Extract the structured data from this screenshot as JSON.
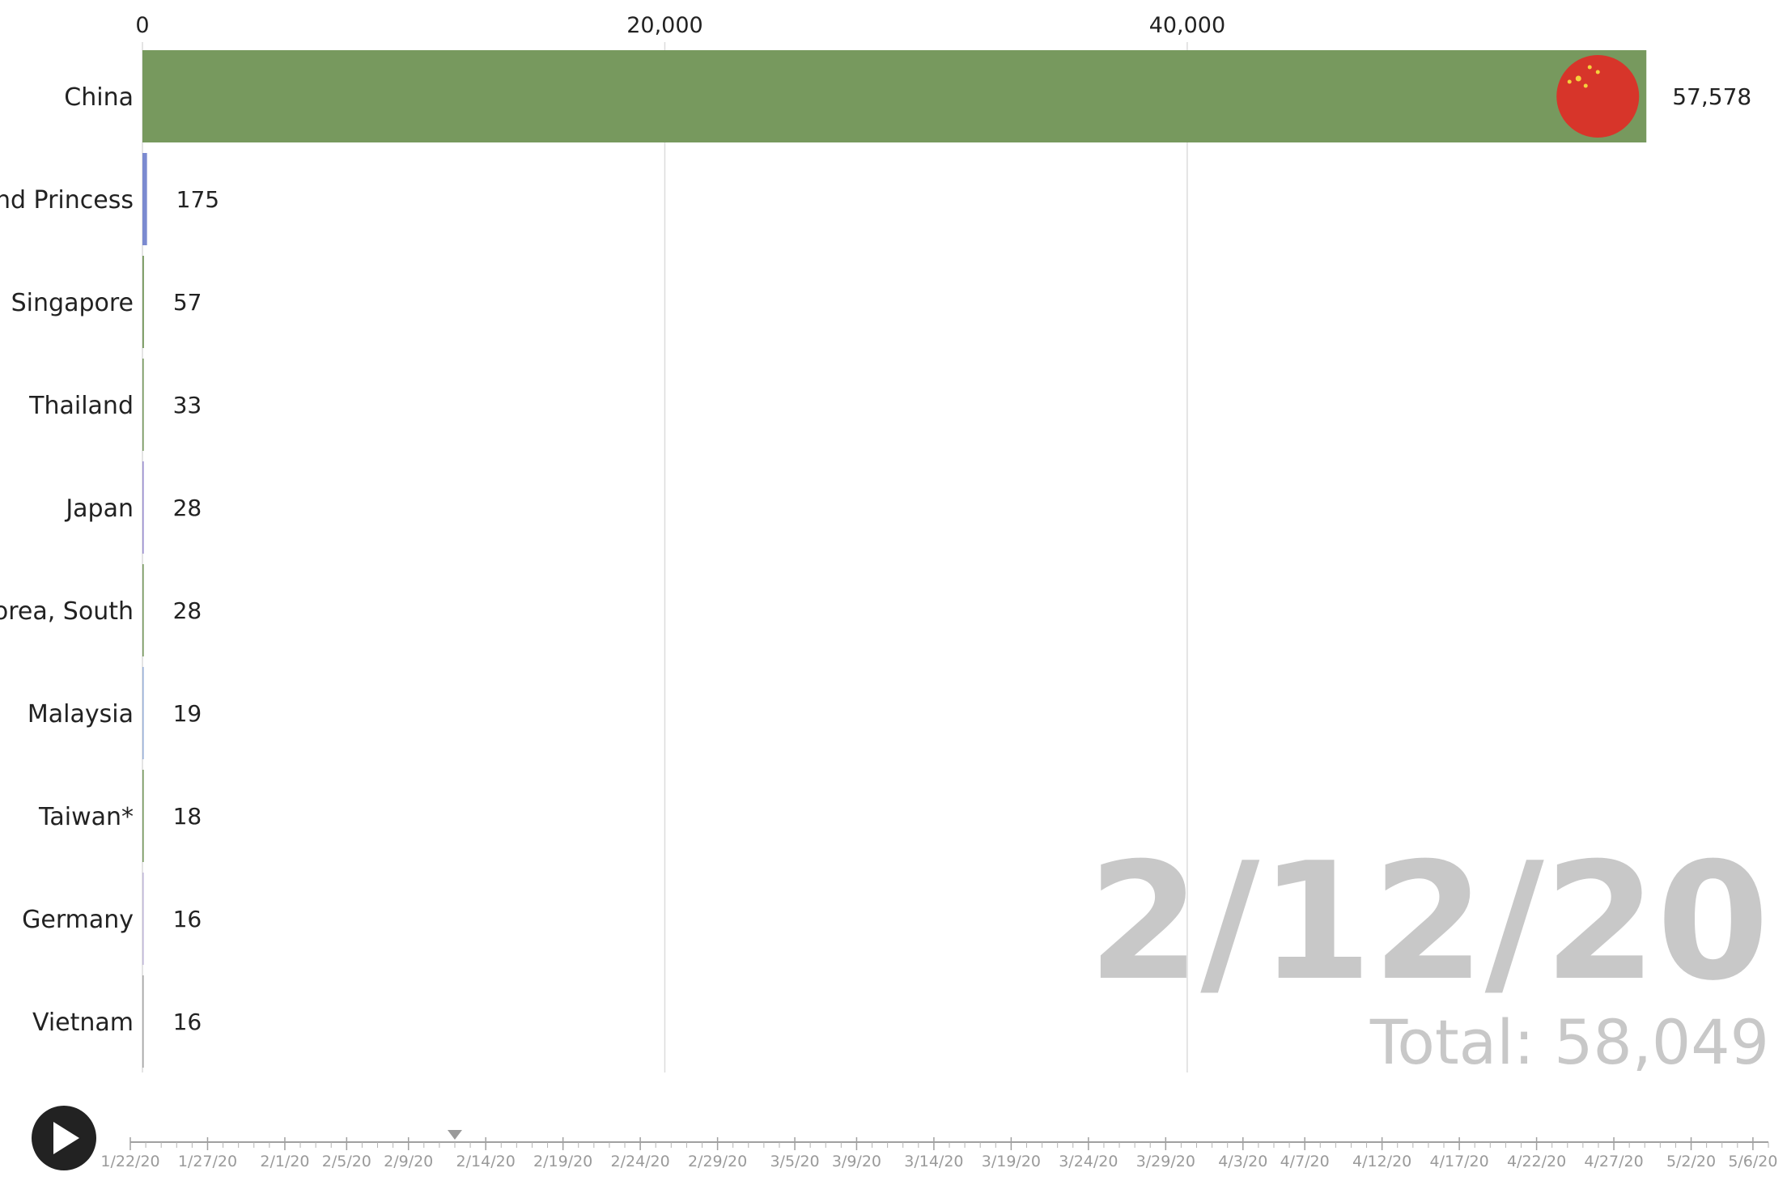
{
  "chart_data": {
    "type": "bar",
    "orientation": "horizontal",
    "categories": [
      "China",
      "Diamond Princess",
      "Singapore",
      "Thailand",
      "Japan",
      "Korea, South",
      "Malaysia",
      "Taiwan*",
      "Germany",
      "Vietnam"
    ],
    "category_labels_shown": [
      "China",
      "nd Princess",
      "Singapore",
      "Thailand",
      "Japan",
      "orea, South",
      "Malaysia",
      "Taiwan*",
      "Germany",
      "Vietnam"
    ],
    "values": [
      57578,
      175,
      57,
      33,
      28,
      28,
      19,
      18,
      16,
      16
    ],
    "value_labels": [
      "57,578",
      "175",
      "57",
      "33",
      "28",
      "28",
      "19",
      "18",
      "16",
      "16"
    ],
    "bar_colors": [
      "#77995e",
      "#7b8ad0",
      "#77995e",
      "#77995e",
      "#9b8fd0",
      "#77995e",
      "#9ab0d8",
      "#77995e",
      "#c0b8d8",
      "#a8a8a8"
    ],
    "xlim": [
      0,
      58500
    ],
    "x_ticks": [
      0,
      20000,
      40000
    ],
    "x_tick_labels": [
      "0",
      "20,000",
      "40,000"
    ],
    "grid": true,
    "grid_color": "#dcdcdc",
    "date": "2/12/20",
    "total_label": "Total: 58,049",
    "flag_icon": "china-flag-icon"
  },
  "controls": {
    "play_icon": "play-icon",
    "timeline": {
      "labels": [
        "1/22/20",
        "1/27/20",
        "2/1/20",
        "2/5/20",
        "2/9/20",
        "2/14/20",
        "2/19/20",
        "2/24/20",
        "2/29/20",
        "3/5/20",
        "3/9/20",
        "3/14/20",
        "3/19/20",
        "3/24/20",
        "3/29/20",
        "4/3/20",
        "4/7/20",
        "4/12/20",
        "4/17/20",
        "4/22/20",
        "4/27/20",
        "5/2/20",
        "5/6/20"
      ],
      "current": "2/12/20"
    }
  }
}
